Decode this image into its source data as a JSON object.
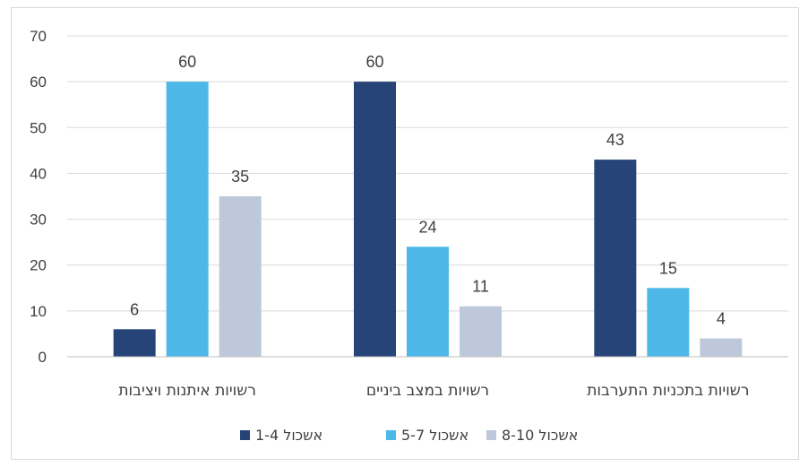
{
  "chart_data": {
    "type": "bar",
    "categories": [
      "רשויות איתנות ויציבות",
      "רשויות במצב ביניים",
      "רשויות בתכניות התערבות"
    ],
    "series": [
      {
        "name": "אשכול 1-4",
        "color": "#264478",
        "values": [
          6,
          60,
          43
        ]
      },
      {
        "name": "אשכול 5-7",
        "color": "#4DB8E8",
        "values": [
          60,
          24,
          15
        ]
      },
      {
        "name": "אשכול 8-10",
        "color": "#BDC8DA",
        "values": [
          35,
          11,
          4
        ]
      }
    ],
    "yticks": [
      "0",
      "10",
      "20",
      "30",
      "40",
      "50",
      "60",
      "70"
    ],
    "ylim": [
      0,
      70
    ],
    "grid": true,
    "legend_position": "bottom",
    "data_labels": true,
    "gridline_color": "#d9d9d9"
  }
}
